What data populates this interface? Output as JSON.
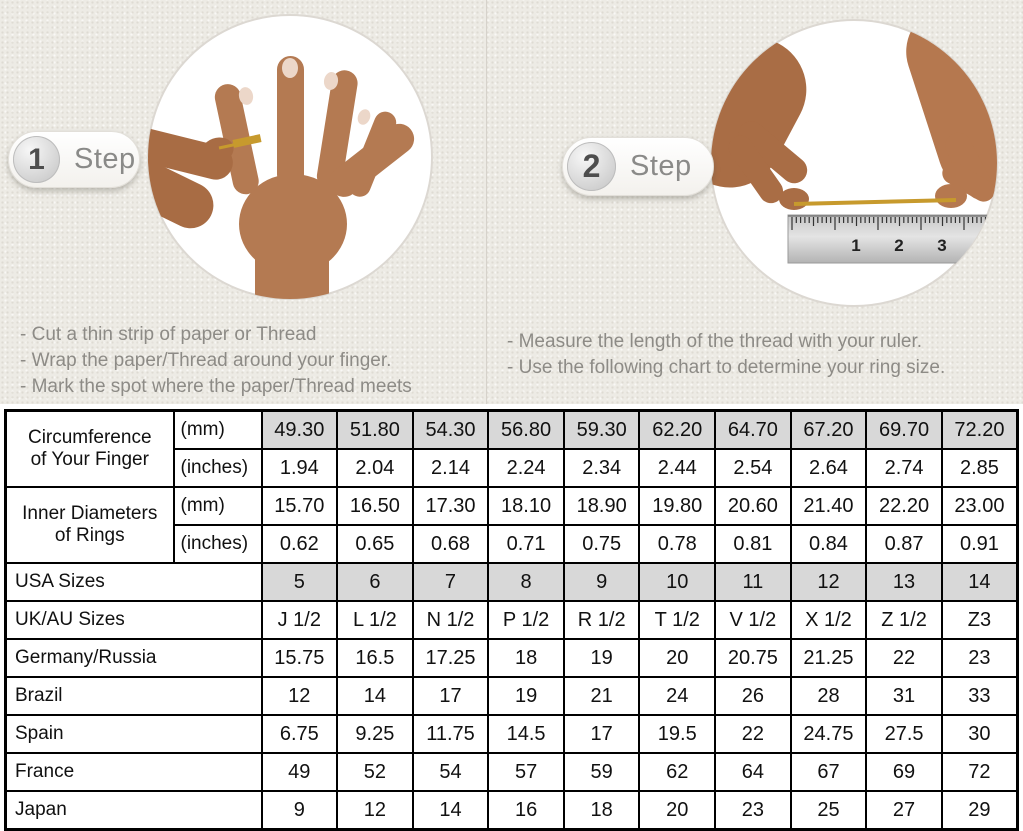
{
  "steps": [
    {
      "number": "1",
      "label": "Step",
      "bullets": [
        "-  Cut a thin strip of paper or Thread",
        "-  Wrap the paper/Thread around your finger.",
        "-  Mark the spot where the paper/Thread meets"
      ]
    },
    {
      "number": "2",
      "label": "Step",
      "bullets": [
        "-  Measure the length of the thread with your ruler.",
        "-  Use the following chart to determine your ring size."
      ]
    }
  ],
  "illustration": {
    "left_photo": "hand-with-thread-wrapped-around-finger",
    "right_photo": "hands-measuring-thread-on-ruler",
    "ruler_numbers": [
      "1",
      "2",
      "3"
    ]
  },
  "colors": {
    "background_beige": "#edebe5",
    "table_shaded_cell": "#d8d8d8",
    "thread_gold": "#c79a2d",
    "step_text_gray": "#8a8a88"
  },
  "table": {
    "row_groups": [
      {
        "label_lines": [
          "Circumference",
          "of Your Finger"
        ],
        "rows": [
          {
            "unit": "(mm)",
            "shaded": true,
            "values": [
              "49.30",
              "51.80",
              "54.30",
              "56.80",
              "59.30",
              "62.20",
              "64.70",
              "67.20",
              "69.70",
              "72.20"
            ]
          },
          {
            "unit": "(inches)",
            "shaded": false,
            "values": [
              "1.94",
              "2.04",
              "2.14",
              "2.24",
              "2.34",
              "2.44",
              "2.54",
              "2.64",
              "2.74",
              "2.85"
            ]
          }
        ]
      },
      {
        "label_lines": [
          "Inner Diameters",
          "of Rings"
        ],
        "rows": [
          {
            "unit": "(mm)",
            "shaded": false,
            "values": [
              "15.70",
              "16.50",
              "17.30",
              "18.10",
              "18.90",
              "19.80",
              "20.60",
              "21.40",
              "22.20",
              "23.00"
            ]
          },
          {
            "unit": "(inches)",
            "shaded": false,
            "values": [
              "0.62",
              "0.65",
              "0.68",
              "0.71",
              "0.75",
              "0.78",
              "0.81",
              "0.84",
              "0.87",
              "0.91"
            ]
          }
        ]
      }
    ],
    "size_rows": [
      {
        "label": "USA Sizes",
        "shaded": true,
        "values": [
          "5",
          "6",
          "7",
          "8",
          "9",
          "10",
          "11",
          "12",
          "13",
          "14"
        ]
      },
      {
        "label": "UK/AU Sizes",
        "shaded": false,
        "values": [
          "J 1/2",
          "L 1/2",
          "N 1/2",
          "P 1/2",
          "R 1/2",
          "T 1/2",
          "V 1/2",
          "X 1/2",
          "Z 1/2",
          "Z3"
        ]
      },
      {
        "label": "Germany/Russia",
        "shaded": false,
        "values": [
          "15.75",
          "16.5",
          "17.25",
          "18",
          "19",
          "20",
          "20.75",
          "21.25",
          "22",
          "23"
        ]
      },
      {
        "label": "Brazil",
        "shaded": false,
        "values": [
          "12",
          "14",
          "17",
          "19",
          "21",
          "24",
          "26",
          "28",
          "31",
          "33"
        ]
      },
      {
        "label": "Spain",
        "shaded": false,
        "values": [
          "6.75",
          "9.25",
          "11.75",
          "14.5",
          "17",
          "19.5",
          "22",
          "24.75",
          "27.5",
          "30"
        ]
      },
      {
        "label": "France",
        "shaded": false,
        "values": [
          "49",
          "52",
          "54",
          "57",
          "59",
          "62",
          "64",
          "67",
          "69",
          "72"
        ]
      },
      {
        "label": "Japan",
        "shaded": false,
        "values": [
          "9",
          "12",
          "14",
          "16",
          "18",
          "20",
          "23",
          "25",
          "27",
          "29"
        ]
      }
    ]
  }
}
